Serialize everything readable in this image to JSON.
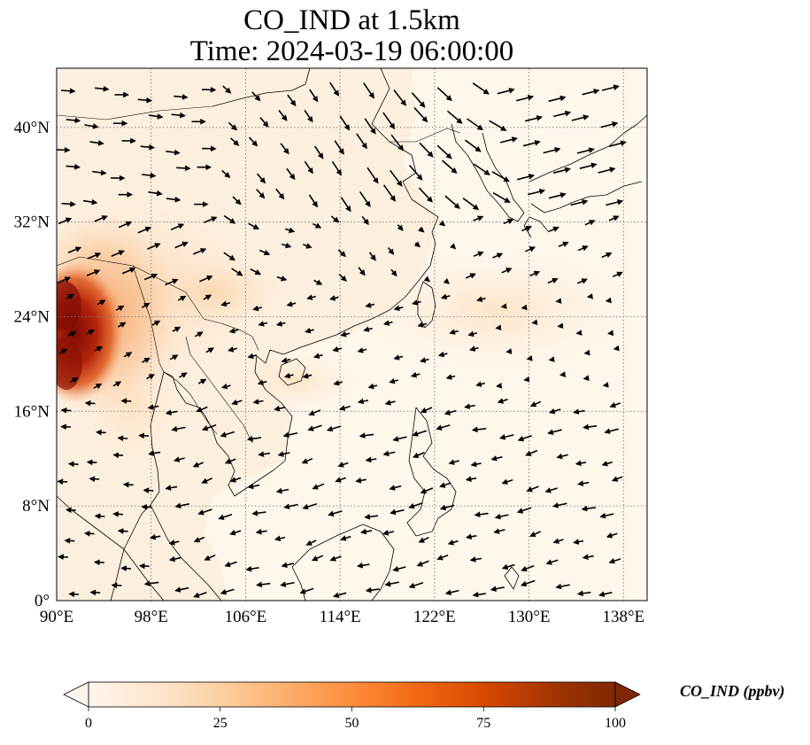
{
  "title": {
    "line1": "CO_IND at 1.5km",
    "line2": "Time: 2024-03-19 06:00:00"
  },
  "map": {
    "lon_range": [
      90,
      140
    ],
    "lat_range": [
      0,
      45
    ],
    "lon_ticks": [
      {
        "value": 90,
        "label": "90°E"
      },
      {
        "value": 98,
        "label": "98°E"
      },
      {
        "value": 106,
        "label": "106°E"
      },
      {
        "value": 114,
        "label": "114°E"
      },
      {
        "value": 122,
        "label": "122°E"
      },
      {
        "value": 130,
        "label": "130°E"
      },
      {
        "value": 138,
        "label": "138°E"
      }
    ],
    "lat_ticks": [
      {
        "value": 0,
        "label": "0°"
      },
      {
        "value": 8,
        "label": "8°N"
      },
      {
        "value": 16,
        "label": "16°N"
      },
      {
        "value": 24,
        "label": "24°N"
      },
      {
        "value": 32,
        "label": "32°N"
      },
      {
        "value": 40,
        "label": "40°N"
      }
    ],
    "gridlines": "dotted",
    "wind_vectors": "arrows",
    "colors": {
      "background_low": "#fff5eb",
      "ocean": "#fff7ee",
      "land_light": "#fdebd6",
      "plume_mid": "#f7a567",
      "plume_high": "#e2581f",
      "plume_max": "#8b0e04",
      "coastline": "#000000",
      "grid": "#777777"
    }
  },
  "colorbar": {
    "label": "CO_IND (ppbv)",
    "ticks": [
      {
        "value": 0,
        "label": "0"
      },
      {
        "value": 25,
        "label": "25"
      },
      {
        "value": 50,
        "label": "50"
      },
      {
        "value": 75,
        "label": "75"
      },
      {
        "value": 100,
        "label": "100"
      }
    ],
    "range": [
      0,
      100
    ],
    "extend": "both",
    "colormap": [
      "#fff5eb",
      "#fee6ce",
      "#fdd0a2",
      "#fdae6b",
      "#fd8d3c",
      "#f16913",
      "#d94801",
      "#a63603",
      "#7f2704"
    ]
  }
}
